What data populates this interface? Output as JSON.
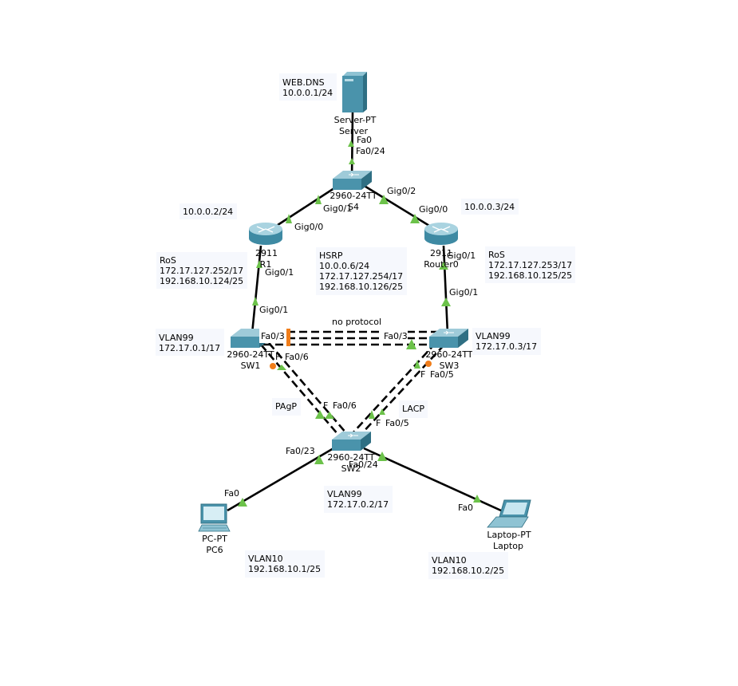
{
  "devices": {
    "server": {
      "model": "Server-PT",
      "name": "Server"
    },
    "s4": {
      "model": "2960-24TT",
      "name": "S4"
    },
    "r1": {
      "model": "2911",
      "name": "R1"
    },
    "r0": {
      "model": "2911",
      "name": "Router0"
    },
    "sw1": {
      "model": "2960-24TT",
      "name": "SW1"
    },
    "sw3": {
      "model": "2960-24TT",
      "name": "SW3"
    },
    "sw2": {
      "model": "2960-24TT",
      "name": "SW2"
    },
    "pc6": {
      "model": "PC-PT",
      "name": "PC6"
    },
    "laptop": {
      "model": "Laptop-PT",
      "name": "Laptop"
    }
  },
  "ports": {
    "server_fa0": "Fa0",
    "s4_fa024": "Fa0/24",
    "s4_gig01": "Gig0/1",
    "s4_gig02": "Gig0/2",
    "r1_gig00": "Gig0/0",
    "r1_gig01": "Gig0/1",
    "r0_gig00": "Gig0/0",
    "r0_gig01": "Gig0/1",
    "sw1_gig01": "Gig0/1",
    "sw3_gig01": "Gig0/1",
    "sw1_fa03": "Fa0/3",
    "sw3_fa03": "Fa0/3",
    "sw1_fa06": "Fa0/6",
    "sw1_fa_trunc": "F",
    "sw3_fa05": "Fa0/5",
    "sw3_fa_trunc": "F",
    "sw2_fa06": "Fa0/6",
    "sw2_fa_trunc1": "F",
    "sw2_fa05": "Fa0/5",
    "sw2_fa_trunc2": "F",
    "sw2_fa023": "Fa0/23",
    "sw2_fa024": "Fa0/24",
    "pc6_fa0": "Fa0",
    "laptop_fa0": "Fa0"
  },
  "link_labels": {
    "pagp": "PAgP",
    "lacp": "LACP",
    "no_protocol": "no protocol"
  },
  "notes": {
    "web_dns": [
      "WEB.DNS",
      "10.0.0.1/24"
    ],
    "r1_ip": [
      "10.0.0.2/24"
    ],
    "r0_ip": [
      "10.0.0.3/24"
    ],
    "r1_ros": [
      "RoS",
      "172.17.127.252/17",
      "192.168.10.124/25"
    ],
    "hsrp": [
      "HSRP",
      "10.0.0.6/24",
      "172.17.127.254/17",
      "192.168.10.126/25"
    ],
    "r0_ros": [
      "RoS",
      "172.17.127.253/17",
      "192.168.10.125/25"
    ],
    "sw1_vlan": [
      "VLAN99",
      "172.17.0.1/17"
    ],
    "sw3_vlan": [
      "VLAN99",
      "172.17.0.3/17"
    ],
    "sw2_vlan": [
      "VLAN99",
      "172.17.0.2/17"
    ],
    "pc6_vlan": [
      "VLAN10",
      "192.168.10.1/25"
    ],
    "laptop_vlan": [
      "VLAN10",
      "192.168.10.2/25"
    ]
  },
  "colors": {
    "link_up": "#6cc24a",
    "link_blocked": "#f07d1a",
    "device_blue": "#4a93ab",
    "note_bg": "#f6f8fd"
  }
}
